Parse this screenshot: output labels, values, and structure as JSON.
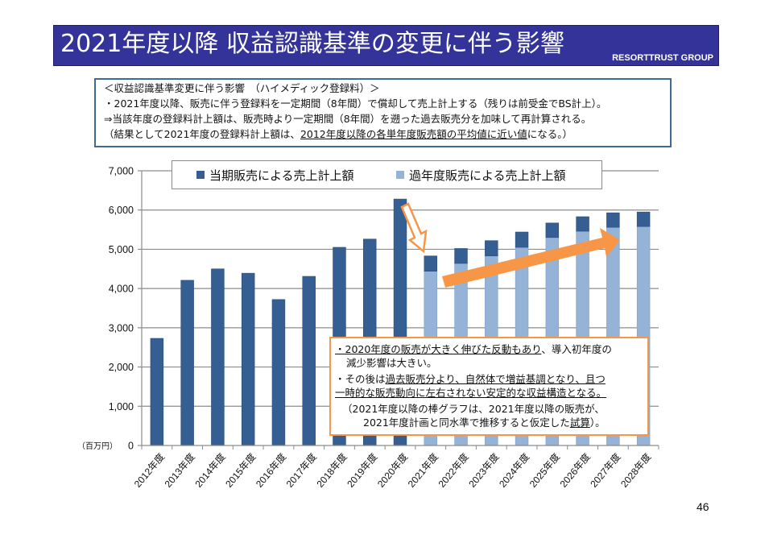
{
  "header": {
    "title": "2021年度以降 収益認識基準の変更に伴う影響",
    "brand": "RESORTTRUST GROUP"
  },
  "note": {
    "lines": [
      "＜収益認識基準変更に伴う影響　（ハイメディック登録料）＞",
      "・2021年度以降、販売に伴う登録料を一定期間（8年間）で償却して売上計上する（残りは前受金でBS計上）。",
      "⇒当該年度の登録料計上額は、販売時より一定期間（8年間）を遡った過去販売分を加味して再計算される。"
    ],
    "line4_prefix": "（結果として2021年度の登録料計上額は、",
    "line4_underlined": "2012年度以降の各単年度販売額の平均値に近い値",
    "line4_suffix": "になる。）"
  },
  "callout": {
    "l1_underlined": "・2020年度の販売が大きく伸びた反動もあり",
    "l1_rest": "、導入初年度の",
    "l2": "減少影響は大きい。",
    "l3_prefix": "・その後は",
    "l3_underlined": "過去販売分より、自然体で増益基調となり、且つ",
    "l4_underlined": "一時的な販売動向に左右されない安定的な収益構造となる。",
    "l5": "（2021年度以降の棒グラフは、2021年度以降の販売が、",
    "l6_prefix": "2021年度計画と同水準で推移すると仮定した",
    "l6_underlined": "試算",
    "l6_suffix": "）。"
  },
  "page_number": "46",
  "colors": {
    "title_bg": "#333399",
    "current": "#355e93",
    "past": "#95b3d7",
    "accent": "#f79646",
    "note_border": "#3f6a96"
  },
  "chart_data": {
    "type": "bar",
    "stacked": true,
    "title": "",
    "xlabel": "",
    "ylabel": "（百万円）",
    "ylim": [
      0,
      7000
    ],
    "yticks": [
      0,
      1000,
      2000,
      3000,
      4000,
      5000,
      6000,
      7000
    ],
    "ytick_labels": [
      "0",
      "1,000",
      "2,000",
      "3,000",
      "4,000",
      "5,000",
      "6,000",
      "7,000"
    ],
    "grid": true,
    "legend_position": "top",
    "categories": [
      "2012年度",
      "2013年度",
      "2014年度",
      "2015年度",
      "2016年度",
      "2017年度",
      "2018年度",
      "2019年度",
      "2020年度",
      "2021年度",
      "2022年度",
      "2023年度",
      "2024年度",
      "2025年度",
      "2026年度",
      "2027年度",
      "2028年度"
    ],
    "series": [
      {
        "name": "過年度販売による売上計上額",
        "color": "#95b3d7",
        "values": [
          0,
          0,
          0,
          0,
          0,
          0,
          0,
          0,
          0,
          4440,
          4640,
          4830,
          5050,
          5300,
          5460,
          5560,
          5580
        ]
      },
      {
        "name": "当期販売による売上計上額",
        "color": "#355e93",
        "values": [
          2730,
          4210,
          4500,
          4390,
          3720,
          4310,
          5050,
          5260,
          6280,
          390,
          380,
          390,
          390,
          370,
          370,
          370,
          370
        ]
      }
    ],
    "legend": [
      "当期販売による売上計上額",
      "過年度販売による売上計上額"
    ],
    "annotations": [
      {
        "type": "arrow",
        "style": "hollow-orange",
        "from_category": "2020年度",
        "to_category": "2021年度",
        "meaning": "decrease"
      },
      {
        "type": "arrow",
        "style": "solid-orange",
        "from_category": "2021年度",
        "to_category": "2027年度",
        "meaning": "increase trend"
      }
    ]
  }
}
